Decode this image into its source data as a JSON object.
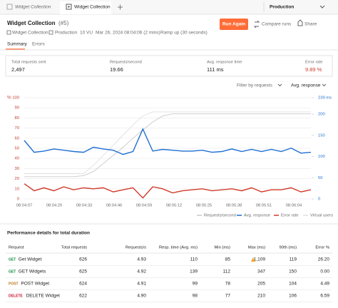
{
  "tabs": [
    "Widget Collection",
    "Widget Collection"
  ],
  "environment": "Production",
  "header": {
    "title": "Widget Collection",
    "run_id": "(#5)",
    "run_again": "Run Again",
    "compare": "Compare runs",
    "share": "Share"
  },
  "meta": [
    "Widget Collection",
    "Production",
    "10 VU",
    "Mar 26, 2024 08:04:06 (2 mins)",
    "Ramp up (30 seconds)"
  ],
  "view_tabs": [
    "Summary",
    "Errors"
  ],
  "stats": [
    {
      "label": "Total requests sent",
      "value": "2,497"
    },
    {
      "label": "Requests/second",
      "value": "19.66"
    },
    {
      "label": "Avg. response time",
      "value": "111 ms"
    },
    {
      "label": "Error rate",
      "value": "9.89 %"
    }
  ],
  "filters": [
    "Filter by requests",
    "Avg. response"
  ],
  "chart_data": {
    "type": "line",
    "y_label": "%",
    "x_labels": [
      "08:04:07",
      "08:04:20",
      "08:04:33",
      "08:04:46",
      "08:04:59",
      "08:05:12",
      "08:05:25",
      "08:05:38",
      "08:05:51",
      "08:06:04"
    ],
    "ylim": [
      0,
      100
    ],
    "yticks": [
      0,
      10,
      20,
      30,
      40,
      50,
      60,
      70,
      80,
      90,
      100
    ],
    "y2lim": [
      0,
      239
    ],
    "y2ticks": [
      0,
      50,
      100,
      150,
      200,
      {
        "value": 239,
        "label": "239 ms"
      }
    ],
    "grid": true,
    "series": [
      {
        "name": "Requests/second",
        "color": "#c9c9c9",
        "values": [
          22,
          22,
          22,
          22,
          22,
          22,
          23,
          27,
          35,
          43,
          51,
          60,
          68,
          76,
          82,
          84,
          84,
          84,
          84,
          84,
          84,
          84,
          84,
          84,
          84,
          84,
          84,
          84,
          84,
          84
        ]
      },
      {
        "name": "Avg. response",
        "color": "#1f6fd1",
        "axis": "y2",
        "values": [
          138,
          110,
          113,
          118,
          115,
          112,
          110,
          122,
          118,
          115,
          105,
          112,
          165,
          113,
          117,
          115,
          113,
          113,
          115,
          110,
          112,
          118,
          112,
          117,
          112,
          117,
          112,
          120,
          108,
          110
        ]
      },
      {
        "name": "Error rate",
        "color": "#d13b2b",
        "values": [
          15,
          8,
          11,
          8,
          12,
          9,
          11,
          10,
          11,
          7,
          9,
          11,
          1,
          12,
          10,
          6,
          8,
          9,
          10,
          8,
          9,
          10,
          8,
          11,
          7,
          9,
          9,
          11,
          7,
          9
        ]
      },
      {
        "name": "Virtual users",
        "color": "#e0e0e0",
        "values": [
          25,
          25,
          25,
          25,
          25,
          25,
          25,
          33,
          43,
          53,
          63,
          73,
          82,
          86,
          86,
          86,
          86,
          86,
          86,
          86,
          86,
          86,
          86,
          86,
          86,
          86,
          86,
          86,
          86,
          86
        ]
      }
    ]
  },
  "table": {
    "title": "Performance details for total duration",
    "columns": [
      "Request",
      "Total requests",
      "Requests/s",
      "Resp. time (Avg. ms)",
      "Min (ms)",
      "Max (ms)",
      "90th (ms)",
      "Error %"
    ],
    "rows": [
      {
        "method": "GET",
        "method_color": "#0b8a3c",
        "name": "Get Widget",
        "cells": [
          "626",
          "4.93",
          "110",
          "85",
          "1,109",
          "119",
          "26.20"
        ]
      },
      {
        "method": "GET",
        "method_color": "#0b8a3c",
        "name": "GET Widgets",
        "cells": [
          "625",
          "4.92",
          "139",
          "112",
          "347",
          "150",
          "0.00"
        ]
      },
      {
        "method": "POST",
        "method_color": "#b7791f",
        "name": "POST Widget",
        "cells": [
          "624",
          "4.91",
          "99",
          "78",
          "205",
          "104",
          "4.49"
        ]
      },
      {
        "method": "DELETE",
        "method_color": "#c8102e",
        "name": "DELETE Widget",
        "cells": [
          "622",
          "4.90",
          "98",
          "77",
          "210",
          "106",
          "6.59"
        ]
      }
    ]
  }
}
